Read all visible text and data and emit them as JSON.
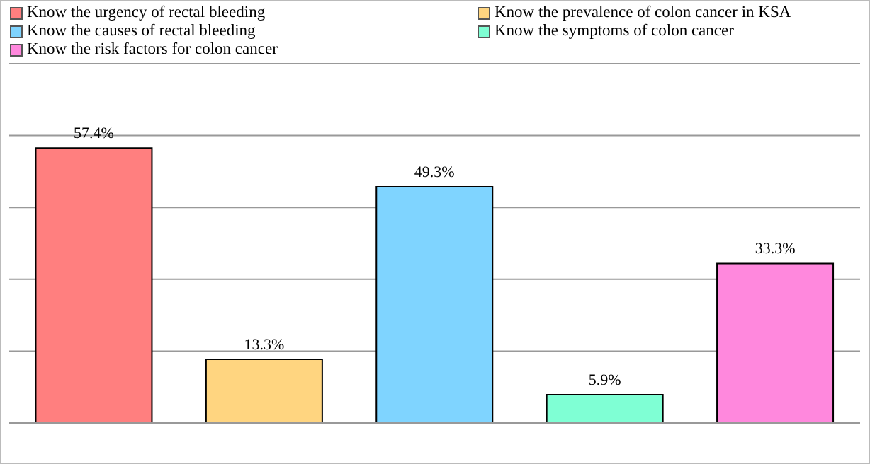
{
  "chart_data": {
    "type": "bar",
    "categories": [
      null,
      null,
      null,
      null,
      null
    ],
    "stacked": true,
    "series": [
      {
        "name": "Know the urgency of rectal bleeding",
        "color": "#ff7f7f",
        "values": [
          57.4,
          null,
          null,
          null,
          null
        ],
        "value_labels": [
          "57.4%",
          null,
          null,
          null,
          null
        ]
      },
      {
        "name": "Know the prevalence of colon cancer in KSA",
        "color": "#ffd580",
        "values": [
          null,
          13.3,
          null,
          null,
          null
        ],
        "value_labels": [
          null,
          "13.3%",
          null,
          null,
          null
        ]
      },
      {
        "name": "Know the causes of rectal bleeding",
        "color": "#7fd4ff",
        "values": [
          null,
          null,
          49.3,
          null,
          null
        ],
        "value_labels": [
          null,
          null,
          "49.3%",
          null,
          null
        ]
      },
      {
        "name": "Know the symptoms of colon cancer",
        "color": "#7fffd4",
        "values": [
          null,
          null,
          null,
          5.9,
          null
        ],
        "value_labels": [
          null,
          null,
          null,
          "5.9%",
          null
        ]
      },
      {
        "name": "Know the risk factors for colon cancer",
        "color": "#ff88dd",
        "values": [
          null,
          null,
          null,
          null,
          33.3
        ],
        "value_labels": [
          null,
          null,
          null,
          null,
          "33.3%"
        ]
      }
    ],
    "ylim": [
      0,
      75
    ],
    "yticks": [
      {
        "value": 0,
        "label": null
      },
      {
        "value": 15,
        "label": null
      },
      {
        "value": 30,
        "label": null
      },
      {
        "value": 45,
        "label": null
      },
      {
        "value": 60,
        "label": null
      },
      {
        "value": 75,
        "label": null
      }
    ],
    "grid": "y",
    "legend": "top"
  }
}
